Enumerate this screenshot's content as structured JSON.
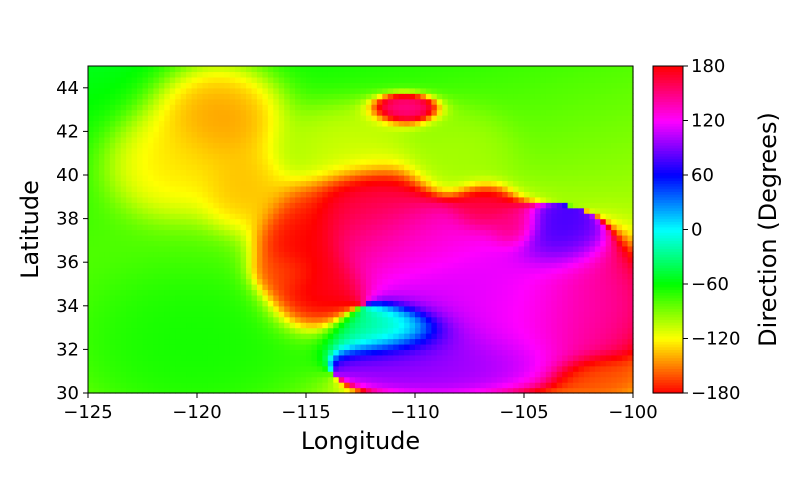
{
  "chart_data": {
    "type": "heatmap",
    "title": "",
    "xlabel": "Longitude",
    "ylabel": "Latitude",
    "xlim": [
      -125,
      -100
    ],
    "ylim": [
      30,
      45
    ],
    "xticks": [
      -125,
      -120,
      -115,
      -110,
      -105,
      -100
    ],
    "xtick_labels": [
      "−125",
      "−120",
      "−115",
      "−110",
      "−105",
      "−100"
    ],
    "yticks": [
      30,
      32,
      34,
      36,
      38,
      40,
      42,
      44
    ],
    "ytick_labels": [
      "30",
      "32",
      "34",
      "36",
      "38",
      "40",
      "42",
      "44"
    ],
    "colorbar": {
      "label": "Direction (Degrees)",
      "colormap": "hsv",
      "range": [
        -180,
        180
      ],
      "ticks": [
        180,
        120,
        60,
        0,
        -60,
        -120,
        -180
      ],
      "tick_labels": [
        "180",
        "120",
        "60",
        "0",
        "−60",
        "−120",
        "−180"
      ]
    },
    "grid": false,
    "features": [
      {
        "center": [
          -119,
          42.5
        ],
        "sigma": [
          1.5,
          1.3
        ],
        "value": -150
      },
      {
        "center": [
          -121,
          40.5
        ],
        "sigma": [
          1.5,
          1.2
        ],
        "value": -130
      },
      {
        "center": [
          -118,
          39.5
        ],
        "sigma": [
          1.0,
          1.0
        ],
        "value": -140
      },
      {
        "center": [
          -113,
          41.5
        ],
        "sigma": [
          1.6,
          0.9
        ],
        "value": -110
      },
      {
        "center": [
          -108,
          41
        ],
        "sigma": [
          1.2,
          1.0
        ],
        "value": -100
      },
      {
        "center": [
          -112,
          38.5
        ],
        "sigma": [
          1.5,
          1.2
        ],
        "value": 160
      },
      {
        "center": [
          -115.5,
          36.5
        ],
        "sigma": [
          1.0,
          1.5
        ],
        "value": 175
      },
      {
        "center": [
          -114.5,
          34.5
        ],
        "sigma": [
          1.2,
          1.0
        ],
        "value": 170
      },
      {
        "center": [
          -116,
          35.5
        ],
        "sigma": [
          0.7,
          0.5
        ],
        "value": -160
      },
      {
        "center": [
          -110,
          37
        ],
        "sigma": [
          2.0,
          1.0
        ],
        "value": 135
      },
      {
        "center": [
          -108,
          35
        ],
        "sigma": [
          3.0,
          2.0
        ],
        "value": 105
      },
      {
        "center": [
          -105,
          34
        ],
        "sigma": [
          2.5,
          1.5
        ],
        "value": 120
      },
      {
        "center": [
          -109,
          31.5
        ],
        "sigma": [
          3.0,
          0.9
        ],
        "value": 90
      },
      {
        "center": [
          -102,
          34
        ],
        "sigma": [
          1.5,
          1.5
        ],
        "value": 145
      },
      {
        "center": [
          -103.5,
          37
        ],
        "sigma": [
          1.2,
          0.8
        ],
        "value": 70
      },
      {
        "center": [
          -107,
          38.5
        ],
        "sigma": [
          0.7,
          0.6
        ],
        "value": 165
      },
      {
        "center": [
          -105.5,
          37.5
        ],
        "sigma": [
          0.6,
          0.5
        ],
        "value": 160
      },
      {
        "center": [
          -110.5,
          43
        ],
        "sigma": [
          0.9,
          0.4
        ],
        "value": 140
      },
      {
        "center": [
          -101.5,
          30.8
        ],
        "sigma": [
          1.0,
          0.5
        ],
        "value": -160
      },
      {
        "center": [
          -111,
          33
        ],
        "sigma": [
          2.0,
          0.8
        ],
        "value": -30
      },
      {
        "center": [
          -120,
          32
        ],
        "sigma": [
          3.0,
          2.0
        ],
        "value": -60
      }
    ]
  }
}
